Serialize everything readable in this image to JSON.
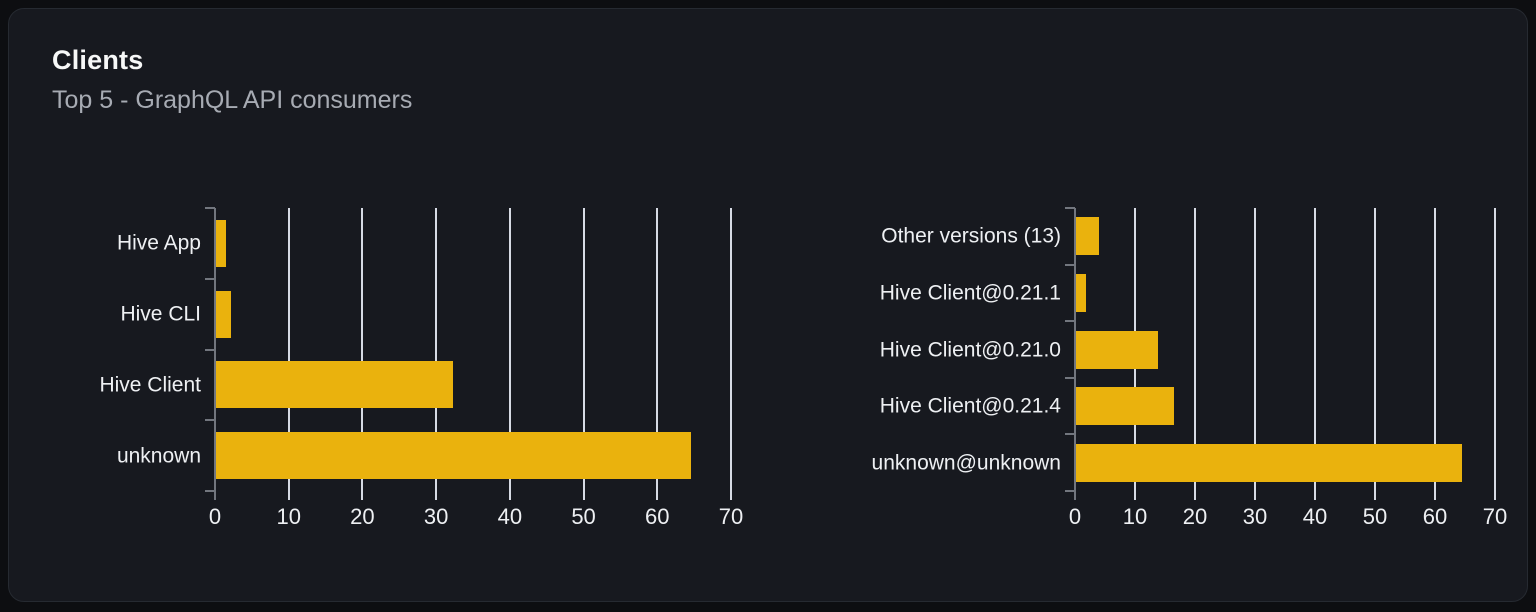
{
  "card": {
    "title": "Clients",
    "subtitle": "Top 5 - GraphQL API consumers"
  },
  "colors": {
    "bar": "#eab20d",
    "grid_line": "#d7dbe4",
    "axis_line": "#72767e",
    "tick_label": "#eef0f3",
    "category_label": "#eef0f3",
    "title": "#f7f8f8",
    "subtitle": "#a7abb3",
    "card_bg": "#17191f",
    "card_border": "#262a31",
    "page_bg": "#0d0e11"
  },
  "chart_data": [
    {
      "type": "bar",
      "orientation": "horizontal",
      "name": "clients-by-name",
      "title": "",
      "xlabel": "",
      "ylabel": "",
      "categories": [
        "Hive App",
        "Hive CLI",
        "Hive Client",
        "unknown"
      ],
      "values": [
        1.4,
        2.1,
        32.2,
        64.4
      ],
      "xlim": [
        0,
        70
      ],
      "xticks": [
        0,
        10,
        20,
        30,
        40,
        50,
        60,
        70
      ],
      "grid": true,
      "legend": false,
      "bar_fraction": 0.66
    },
    {
      "type": "bar",
      "orientation": "horizontal",
      "name": "clients-by-version",
      "title": "",
      "xlabel": "",
      "ylabel": "",
      "categories": [
        "Other versions (13)",
        "Hive Client@0.21.1",
        "Hive Client@0.21.0",
        "Hive Client@0.21.4",
        "unknown@unknown"
      ],
      "values": [
        3.9,
        1.7,
        13.7,
        16.3,
        64.4
      ],
      "xlim": [
        0,
        70
      ],
      "xticks": [
        0,
        10,
        20,
        30,
        40,
        50,
        60,
        70
      ],
      "grid": true,
      "legend": false,
      "bar_fraction": 0.67
    }
  ]
}
